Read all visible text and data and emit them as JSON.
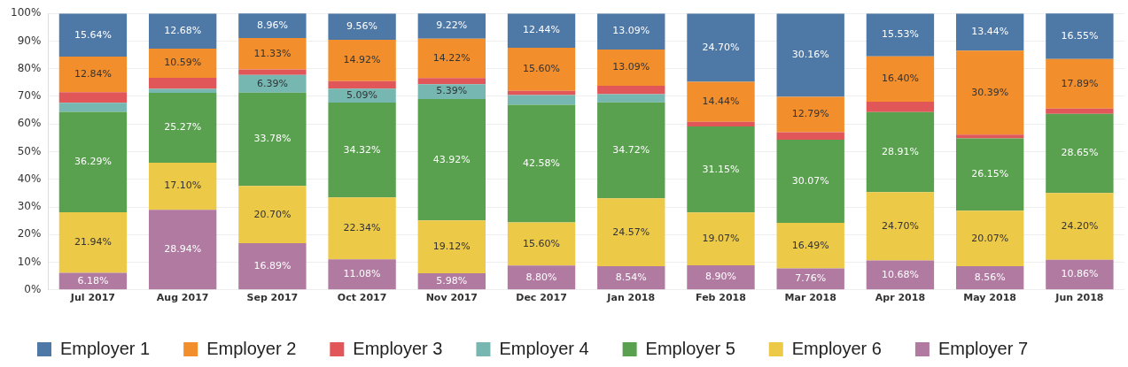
{
  "chart_data": {
    "type": "bar",
    "stacked": true,
    "categories": [
      "Jul 2017",
      "Aug 2017",
      "Sep 2017",
      "Oct 2017",
      "Nov 2017",
      "Dec 2017",
      "Jan 2018",
      "Feb 2018",
      "Mar 2018",
      "Apr 2018",
      "May 2018",
      "Jun 2018"
    ],
    "series": [
      {
        "name": "Employer 7",
        "color": "#b07aa1",
        "values": [
          6.18,
          28.94,
          16.89,
          11.08,
          5.98,
          8.8,
          8.54,
          8.9,
          7.76,
          10.68,
          8.56,
          10.86
        ],
        "value_labels": [
          "6.18%",
          "28.94%",
          "16.89%",
          "11.08%",
          "5.98%",
          "8.80%",
          "8.54%",
          "8.90%",
          "7.76%",
          "10.68%",
          "8.56%",
          "10.86%"
        ]
      },
      {
        "name": "Employer 6",
        "color": "#edc948",
        "values": [
          21.94,
          17.1,
          20.7,
          22.34,
          19.12,
          15.6,
          24.57,
          19.07,
          16.49,
          24.7,
          20.07,
          24.2
        ],
        "value_labels": [
          "21.94%",
          "17.10%",
          "20.70%",
          "22.34%",
          "19.12%",
          "15.60%",
          "24.57%",
          "19.07%",
          "16.49%",
          "24.70%",
          "20.07%",
          "24.20%"
        ]
      },
      {
        "name": "Employer 5",
        "color": "#59a14f",
        "values": [
          36.29,
          25.27,
          33.78,
          34.32,
          43.92,
          42.58,
          34.72,
          31.15,
          30.07,
          28.91,
          26.15,
          28.65
        ],
        "value_labels": [
          "36.29%",
          "25.27%",
          "33.78%",
          "34.32%",
          "43.92%",
          "42.58%",
          "34.72%",
          "31.15%",
          "30.07%",
          "28.91%",
          "26.15%",
          "28.65%"
        ]
      },
      {
        "name": "Employer 4",
        "color": "#76b7b2",
        "values": [
          3.3,
          1.4,
          6.39,
          5.09,
          5.39,
          3.5,
          3.0,
          0,
          0,
          0,
          0,
          0
        ],
        "value_labels": [
          null,
          null,
          "6.39%",
          "5.09%",
          "5.39%",
          null,
          null,
          null,
          null,
          null,
          null,
          null
        ]
      },
      {
        "name": "Employer 3",
        "color": "#e15759",
        "values": [
          3.8,
          4.0,
          2.0,
          2.7,
          2.2,
          1.5,
          3.0,
          1.7,
          2.7,
          3.8,
          1.4,
          1.9
        ]
      },
      {
        "name": "Employer 2",
        "color": "#f28e2b",
        "values": [
          12.84,
          10.59,
          11.33,
          14.92,
          14.22,
          15.6,
          13.09,
          14.44,
          12.79,
          16.4,
          30.39,
          17.89
        ],
        "value_labels": [
          "12.84%",
          "10.59%",
          "11.33%",
          "14.92%",
          "14.22%",
          "15.60%",
          "13.09%",
          "14.44%",
          "12.79%",
          "16.40%",
          "30.39%",
          "17.89%"
        ]
      },
      {
        "name": "Employer 1",
        "color": "#4e79a7",
        "values": [
          15.64,
          12.68,
          8.96,
          9.56,
          9.22,
          12.44,
          13.09,
          24.7,
          30.16,
          15.53,
          13.44,
          16.55
        ],
        "value_labels": [
          "15.64%",
          "12.68%",
          "8.96%",
          "9.56%",
          "9.22%",
          "12.44%",
          "13.09%",
          "24.70%",
          "30.16%",
          "15.53%",
          "13.44%",
          "16.55%"
        ]
      }
    ],
    "ylim": [
      0,
      100
    ],
    "yticks": [
      {
        "value": 0,
        "label": "0%"
      },
      {
        "value": 10,
        "label": "10%"
      },
      {
        "value": 20,
        "label": "20%"
      },
      {
        "value": 30,
        "label": "30%"
      },
      {
        "value": 40,
        "label": "40%"
      },
      {
        "value": 50,
        "label": "50%"
      },
      {
        "value": 60,
        "label": "60%"
      },
      {
        "value": 70,
        "label": "70%"
      },
      {
        "value": 80,
        "label": "80%"
      },
      {
        "value": 90,
        "label": "90%"
      },
      {
        "value": 100,
        "label": "100%"
      }
    ],
    "grid": "y",
    "legend": "bottom left"
  }
}
